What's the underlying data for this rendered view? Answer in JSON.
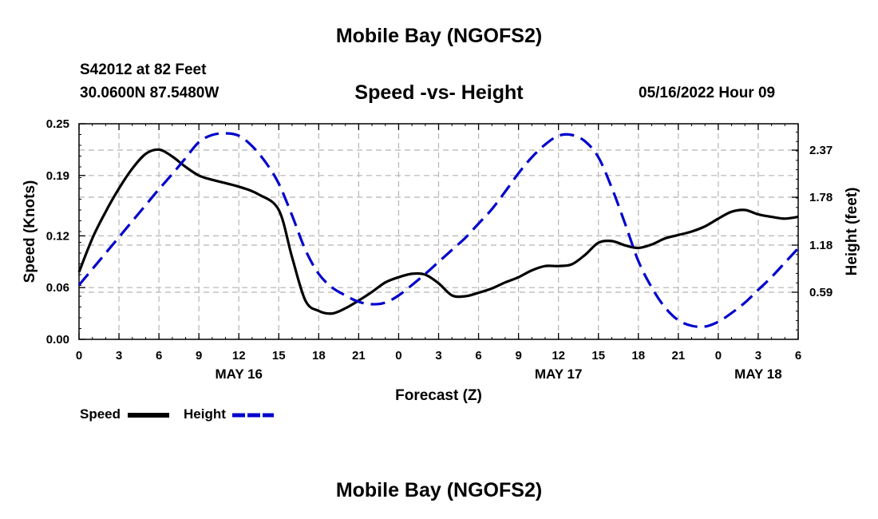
{
  "page": {
    "title": "Mobile Bay (NGOFS2)",
    "footer_title": "Mobile Bay (NGOFS2)",
    "station": "S42012 at 82 Feet",
    "coordinates": "30.0600N  87.5480W",
    "subtitle": "Speed -vs- Height",
    "datetime": "05/16/2022 Hour 09"
  },
  "colors": {
    "speed": "#000000",
    "height": "#0000cc",
    "grid": "#b4b4b4"
  },
  "chart_data": {
    "type": "line",
    "title": "Speed -vs- Height",
    "xlabel": "Forecast (Z)",
    "ylabel_left": "Speed (Knots)",
    "ylabel_right": "Height (feet)",
    "x_range": [
      0,
      54
    ],
    "x_tick_labels": [
      "0",
      "3",
      "6",
      "9",
      "12",
      "15",
      "18",
      "21",
      "0",
      "3",
      "6",
      "9",
      "12",
      "15",
      "18",
      "21",
      "0",
      "3",
      "6"
    ],
    "day_labels": [
      {
        "label": "MAY 16",
        "x": 12
      },
      {
        "label": "MAY 17",
        "x": 36
      },
      {
        "label": "MAY 18",
        "x": 51
      }
    ],
    "y_left": {
      "range": [
        0,
        0.25
      ],
      "ticks": [
        "0.00",
        "0.06",
        "0.12",
        "0.19",
        "0.25"
      ]
    },
    "y_right": {
      "range": [
        0,
        2.7
      ],
      "ticks": [
        "0.59",
        "1.18",
        "1.78",
        "2.37"
      ]
    },
    "series": [
      {
        "name": "Speed",
        "axis": "left",
        "style": "solid",
        "x": [
          0,
          1,
          2,
          3,
          4,
          5,
          6,
          7,
          8,
          9,
          10,
          12,
          13.5,
          15,
          16,
          17,
          18,
          19,
          20,
          21,
          22,
          23,
          24,
          25,
          26,
          27,
          28,
          29,
          30,
          31,
          32,
          33,
          34,
          35,
          36,
          37,
          38,
          39,
          40,
          41,
          42,
          43,
          44,
          45,
          46,
          47,
          48,
          49,
          50,
          51,
          52,
          53,
          54
        ],
        "values": [
          0.078,
          0.117,
          0.148,
          0.175,
          0.198,
          0.215,
          0.22,
          0.212,
          0.2,
          0.19,
          0.185,
          0.177,
          0.168,
          0.15,
          0.095,
          0.045,
          0.033,
          0.03,
          0.036,
          0.045,
          0.055,
          0.066,
          0.072,
          0.076,
          0.075,
          0.065,
          0.051,
          0.05,
          0.054,
          0.059,
          0.066,
          0.072,
          0.08,
          0.085,
          0.085,
          0.087,
          0.098,
          0.112,
          0.114,
          0.109,
          0.106,
          0.11,
          0.117,
          0.121,
          0.125,
          0.131,
          0.14,
          0.148,
          0.15,
          0.145,
          0.142,
          0.14,
          0.142
        ]
      },
      {
        "name": "Height",
        "axis": "right",
        "style": "dashed",
        "x": [
          0,
          1,
          2,
          3,
          4,
          5,
          6,
          7,
          8,
          9,
          10,
          11,
          12,
          13,
          14,
          15,
          16,
          17,
          18,
          19,
          20,
          21,
          22,
          23,
          24,
          25,
          26,
          27,
          28,
          29,
          30,
          31,
          32,
          33,
          34,
          35,
          36,
          37,
          38,
          39,
          40,
          41,
          42,
          43,
          44,
          45,
          46,
          47,
          48,
          49,
          50,
          51,
          52,
          53,
          54
        ],
        "values": [
          0.68,
          0.88,
          1.08,
          1.28,
          1.48,
          1.68,
          1.88,
          2.07,
          2.27,
          2.47,
          2.56,
          2.58,
          2.55,
          2.42,
          2.22,
          1.95,
          1.55,
          1.12,
          0.82,
          0.65,
          0.55,
          0.47,
          0.44,
          0.46,
          0.55,
          0.68,
          0.82,
          0.97,
          1.12,
          1.27,
          1.45,
          1.63,
          1.85,
          2.08,
          2.28,
          2.44,
          2.55,
          2.56,
          2.48,
          2.28,
          1.9,
          1.45,
          0.98,
          0.65,
          0.4,
          0.24,
          0.17,
          0.16,
          0.22,
          0.33,
          0.46,
          0.62,
          0.78,
          0.96,
          1.14
        ]
      }
    ],
    "legend": [
      {
        "name": "Speed",
        "label": "Speed"
      },
      {
        "name": "Height",
        "label": "Height"
      }
    ]
  }
}
